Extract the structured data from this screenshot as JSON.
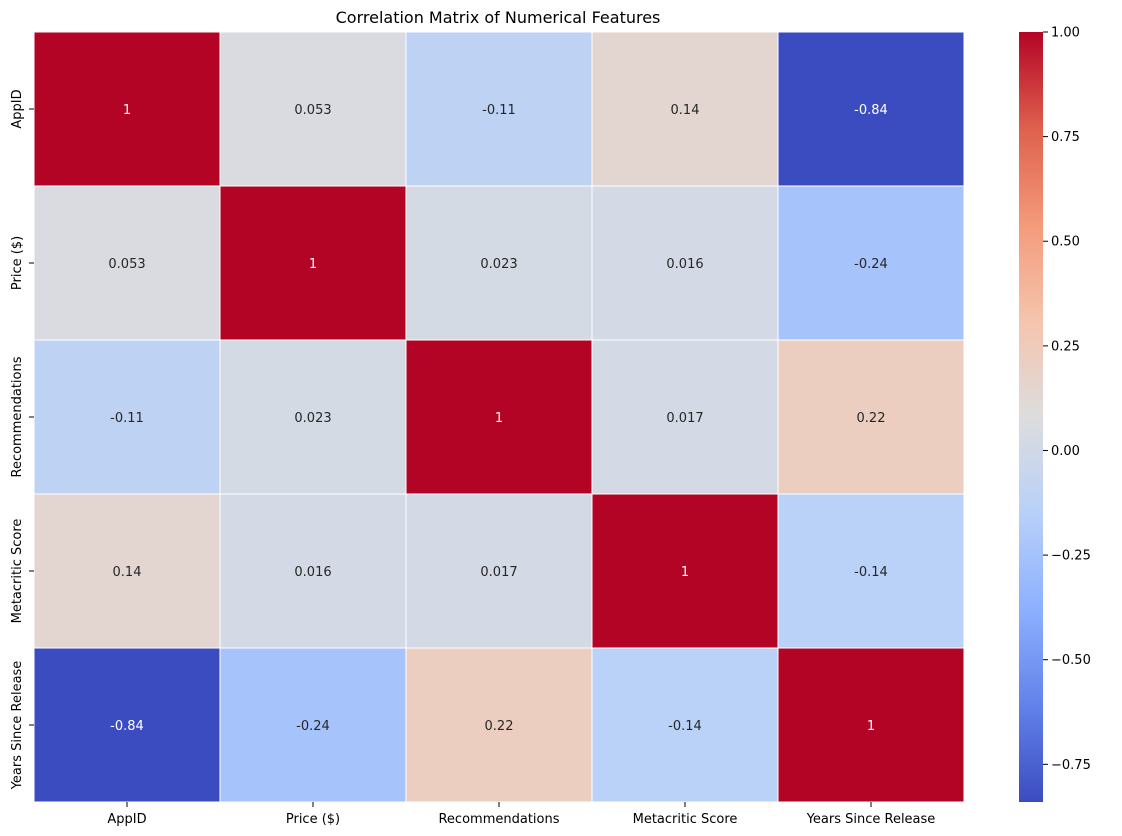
{
  "chart_data": {
    "type": "heatmap",
    "title": "Correlation Matrix of Numerical Features",
    "xlabel": "",
    "ylabel": "",
    "row_labels": [
      "AppID",
      "Price ($)",
      "Recommendations",
      "Metacritic Score",
      "Years Since Release"
    ],
    "column_labels": [
      "AppID",
      "Price ($)",
      "Recommendations",
      "Metacritic Score",
      "Years Since Release"
    ],
    "values": [
      [
        1,
        0.053,
        -0.11,
        0.14,
        -0.84
      ],
      [
        0.053,
        1,
        0.023,
        0.016,
        -0.24
      ],
      [
        -0.11,
        0.023,
        1,
        0.017,
        0.22
      ],
      [
        0.14,
        0.016,
        0.017,
        1,
        -0.14
      ],
      [
        -0.84,
        -0.24,
        0.22,
        -0.14,
        1
      ]
    ],
    "annotations": [
      [
        "1",
        "0.053",
        "-0.11",
        "0.14",
        "-0.84"
      ],
      [
        "0.053",
        "1",
        "0.023",
        "0.016",
        "-0.24"
      ],
      [
        "-0.11",
        "0.023",
        "1",
        "0.017",
        "0.22"
      ],
      [
        "0.14",
        "0.016",
        "0.017",
        "1",
        "-0.14"
      ],
      [
        "-0.84",
        "-0.24",
        "0.22",
        "-0.14",
        "1"
      ]
    ],
    "colormap": "coolwarm",
    "colorbar": {
      "range": [
        -0.84,
        1.0
      ],
      "ticks": [
        1.0,
        0.75,
        0.5,
        0.25,
        0.0,
        -0.25,
        -0.5,
        -0.75
      ],
      "tick_labels": [
        "1.00",
        "0.75",
        "0.50",
        "0.25",
        "0.00",
        "−0.25",
        "−0.50",
        "−0.75"
      ]
    },
    "grid": false,
    "cell_border_color": "#ffffff",
    "annotation_colors": {
      "on_dark": "#ffffff",
      "on_light": "#262626"
    }
  }
}
